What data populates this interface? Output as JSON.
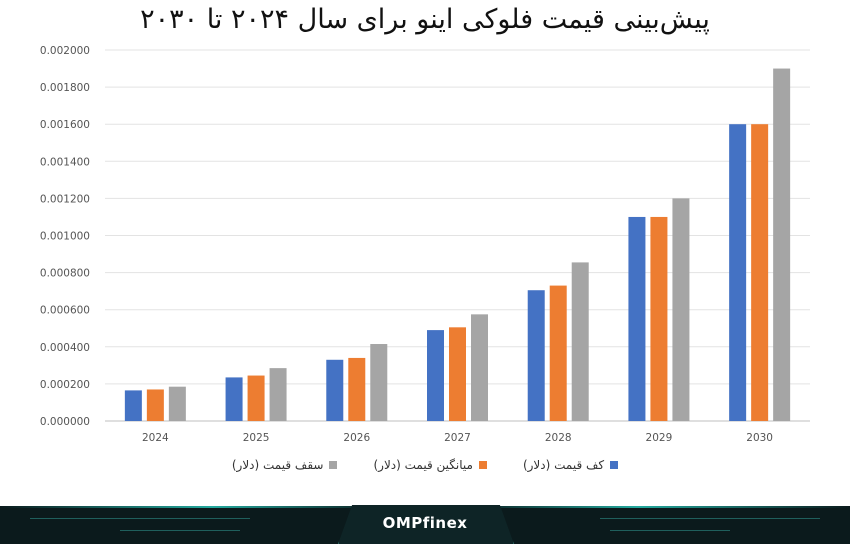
{
  "chart_data": {
    "type": "bar",
    "title": "پیش‌بینی قیمت فلوکی اینو برای سال ۲۰۲۴ تا ۲۰۳۰",
    "categories": [
      "2024",
      "2025",
      "2026",
      "2027",
      "2028",
      "2029",
      "2030"
    ],
    "series": [
      {
        "name": "کف قیمت (دلار)",
        "color": "#4472c4",
        "values": [
          0.000165,
          0.000235,
          0.00033,
          0.00049,
          0.000705,
          0.0011,
          0.0016
        ]
      },
      {
        "name": "میانگین قیمت (دلار)",
        "color": "#ed7d31",
        "values": [
          0.00017,
          0.000245,
          0.00034,
          0.000505,
          0.00073,
          0.0011,
          0.0016
        ]
      },
      {
        "name": "سقف قیمت (دلار)",
        "color": "#a5a5a5",
        "values": [
          0.000185,
          0.000285,
          0.000415,
          0.000575,
          0.000855,
          0.0012,
          0.0019
        ]
      }
    ],
    "yticks": [
      "0.000000",
      "0.000200",
      "0.000400",
      "0.000600",
      "0.000800",
      "0.001000",
      "0.001200",
      "0.001400",
      "0.001600",
      "0.001800",
      "0.002000"
    ],
    "ylim": [
      0,
      0.002
    ],
    "grid": true,
    "legend_position": "bottom"
  },
  "footer": {
    "brand": "OMPfinex"
  }
}
